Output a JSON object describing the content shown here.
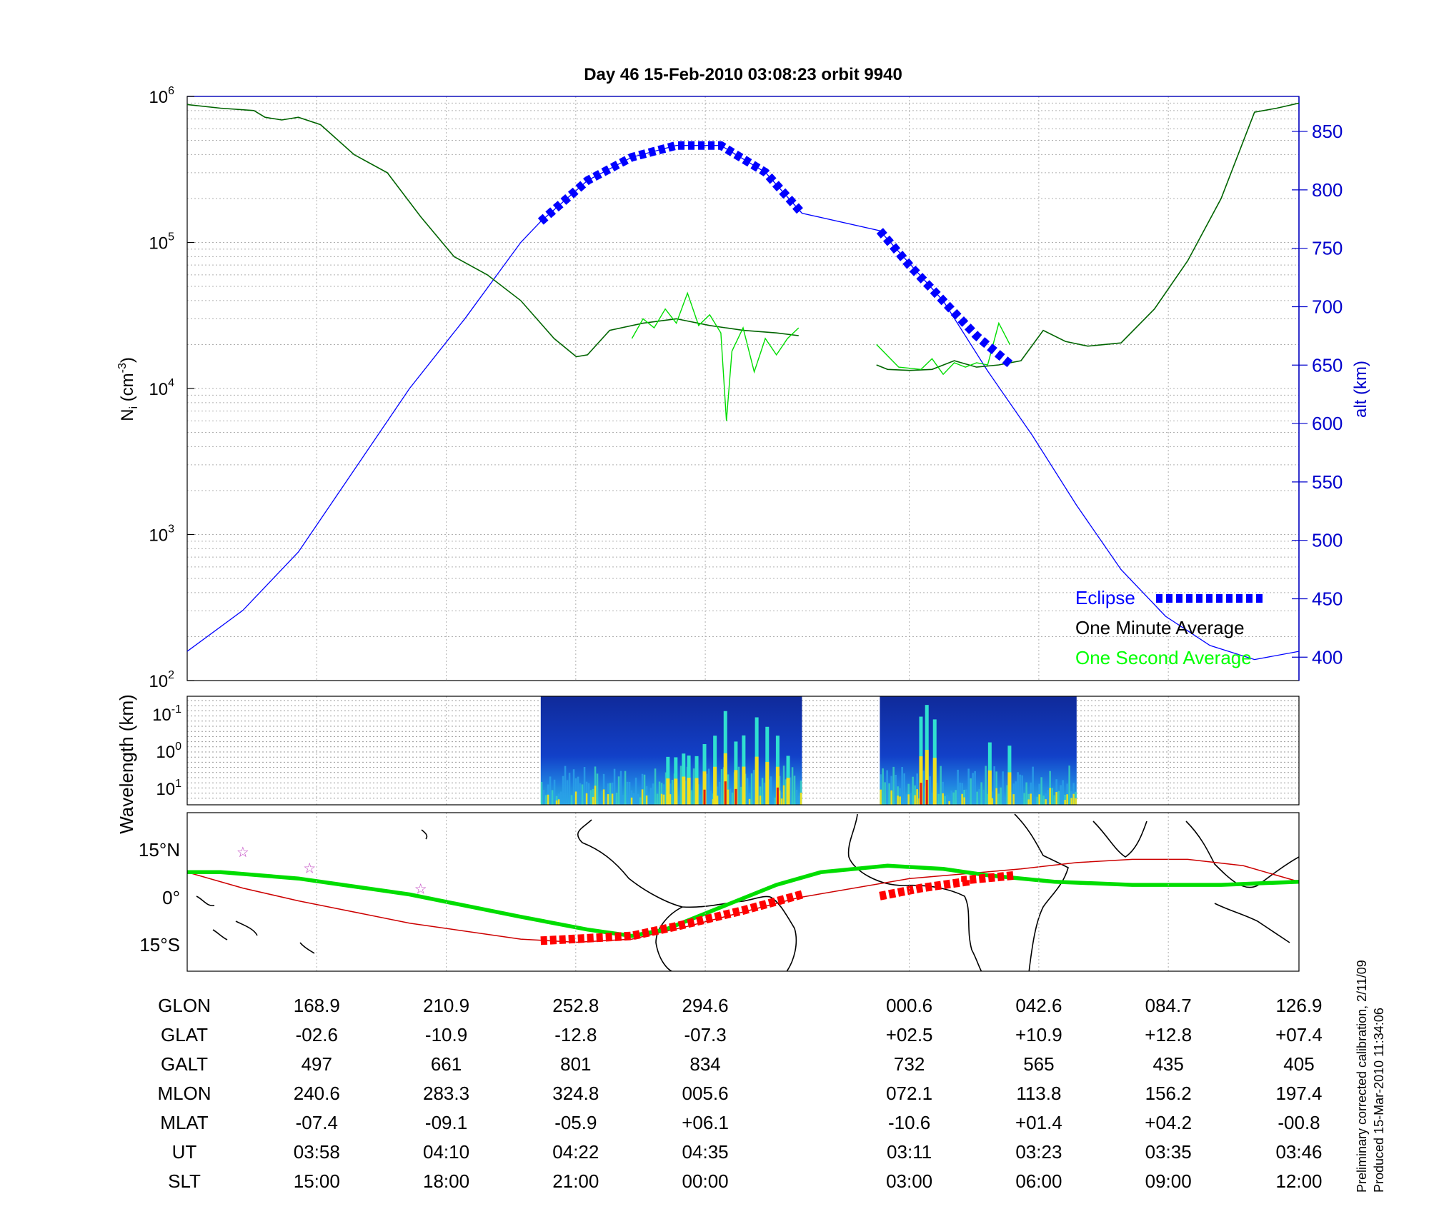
{
  "title": "Day 46  15-Feb-2010 03:08:23   orbit 9940",
  "chart_data": [
    {
      "panel": "ion-density",
      "type": "line",
      "ylabel_left": "N",
      "ylabel_left_sub": "i",
      "ylabel_left_unit_base": "(cm",
      "ylabel_left_unit_exp": "-3",
      "ylabel_left_unit_close": ")",
      "ylabel_right": "alt (km)",
      "y_left_scale": "log",
      "y_left_range": [
        100,
        1000000
      ],
      "y_left_ticks": [
        {
          "base": "10",
          "exp": "2",
          "value": 100
        },
        {
          "base": "10",
          "exp": "3",
          "value": 1000
        },
        {
          "base": "10",
          "exp": "4",
          "value": 10000
        },
        {
          "base": "10",
          "exp": "5",
          "value": 100000
        },
        {
          "base": "10",
          "exp": "6",
          "value": 1000000
        }
      ],
      "y_right_range": [
        380,
        880
      ],
      "y_right_ticks": [
        "400",
        "450",
        "500",
        "550",
        "600",
        "650",
        "700",
        "750",
        "800",
        "850"
      ],
      "x_range": [
        0,
        1
      ],
      "x_tick_positions": [
        0.1165,
        0.233,
        0.3495,
        0.466,
        0.6495,
        0.766,
        0.8825,
        1.0
      ],
      "grid": true,
      "legend_placement": "bottom-right",
      "legend": [
        {
          "label": "Eclipse",
          "color": "#0000ff"
        },
        {
          "label": "One Minute Average",
          "color": "#000000"
        },
        {
          "label": "One Second Average",
          "color": "#00ff00"
        }
      ],
      "series": [
        {
          "name": "Eclipse",
          "color": "#0000ff",
          "axis": "right",
          "segments": [
            {
              "x": [
                0.318,
                0.36,
                0.4,
                0.44,
                0.48,
                0.52,
                0.553
              ],
              "y": [
                773,
                808,
                828,
                838,
                838,
                815,
                780
              ]
            },
            {
              "x": [
                0.623,
                0.65,
                0.68,
                0.71,
                0.74
              ],
              "y": [
                765,
                735,
                705,
                675,
                651
              ]
            }
          ]
        },
        {
          "name": "altitude",
          "color": "#0000ff",
          "axis": "right",
          "x": [
            0,
            0.05,
            0.1,
            0.15,
            0.2,
            0.25,
            0.3,
            0.318,
            0.36,
            0.4,
            0.44,
            0.48,
            0.52,
            0.553,
            0.623,
            0.68,
            0.72,
            0.76,
            0.8,
            0.84,
            0.88,
            0.92,
            0.96,
            1.0
          ],
          "y": [
            405,
            440,
            490,
            560,
            630,
            690,
            755,
            773,
            808,
            828,
            838,
            838,
            815,
            780,
            765,
            705,
            645,
            590,
            530,
            475,
            435,
            410,
            398,
            405
          ]
        },
        {
          "name": "One Minute Average",
          "color": "#006400",
          "axis": "left",
          "segments": [
            {
              "x": [
                0,
                0.03,
                0.06,
                0.07,
                0.085,
                0.1,
                0.12,
                0.15,
                0.18,
                0.21,
                0.24,
                0.27,
                0.3,
                0.33,
                0.35,
                0.36,
                0.38,
                0.41,
                0.44,
                0.47,
                0.5,
                0.53,
                0.55
              ],
              "y": [
                880000,
                830000,
                800000,
                720000,
                690000,
                720000,
                640000,
                400000,
                300000,
                150000,
                80000,
                60000,
                40000,
                22000,
                16500,
                17000,
                25000,
                28000,
                30000,
                27000,
                25000,
                24000,
                23000
              ]
            },
            {
              "x": [
                0.62,
                0.63,
                0.65,
                0.67,
                0.69,
                0.71,
                0.73,
                0.75,
                0.77,
                0.79,
                0.81,
                0.84,
                0.87,
                0.9,
                0.93,
                0.96,
                0.98,
                1.0
              ],
              "y": [
                14500,
                13500,
                13300,
                13500,
                15500,
                14000,
                14500,
                15500,
                25000,
                21000,
                19500,
                20500,
                35000,
                75000,
                200000,
                780000,
                830000,
                900000
              ]
            }
          ]
        },
        {
          "name": "One Second Average",
          "color": "#00dd00",
          "axis": "left",
          "segments": [
            {
              "x": [
                0.4,
                0.41,
                0.42,
                0.43,
                0.44,
                0.45,
                0.46,
                0.47,
                0.48,
                0.485,
                0.49,
                0.5,
                0.51,
                0.52,
                0.53,
                0.54,
                0.55
              ],
              "y": [
                22000,
                30000,
                26000,
                35000,
                28000,
                45000,
                27000,
                32000,
                24000,
                6000,
                18000,
                26000,
                13000,
                22000,
                17000,
                22000,
                26000
              ]
            },
            {
              "x": [
                0.62,
                0.64,
                0.66,
                0.67,
                0.68,
                0.69,
                0.7,
                0.71,
                0.72,
                0.73,
                0.74
              ],
              "y": [
                20000,
                14000,
                13500,
                16000,
                12500,
                15000,
                14000,
                15000,
                14500,
                28000,
                20000
              ]
            }
          ]
        }
      ]
    },
    {
      "panel": "wavelength-spectrogram",
      "type": "heatmap",
      "ylabel": "Wavelength (km)",
      "y_scale": "log",
      "y_ticks": [
        {
          "base": "10",
          "exp": "-1"
        },
        {
          "base": "10",
          "exp": "0"
        },
        {
          "base": "10",
          "exp": "1"
        }
      ],
      "data_spans_x": [
        [
          0.318,
          0.553
        ],
        [
          0.623,
          0.8
        ]
      ]
    },
    {
      "panel": "orbit-map",
      "type": "line",
      "y_ticks": [
        "15°N",
        "0°",
        "15°S"
      ],
      "series": [
        {
          "name": "orbit track",
          "color": "#00dd00",
          "x": [
            0,
            0.03,
            0.1,
            0.2,
            0.3,
            0.36,
            0.4,
            0.43,
            0.48,
            0.53,
            0.57,
            0.63,
            0.68,
            0.72,
            0.78,
            0.85,
            0.93,
            1.0
          ],
          "y": [
            8,
            8,
            6,
            1,
            -6,
            -10,
            -12,
            -10,
            -3,
            4,
            8,
            10,
            9,
            7,
            5,
            4,
            4,
            5
          ]
        },
        {
          "name": "magnetic equator",
          "color": "#cc0000",
          "x": [
            0,
            0.05,
            0.1,
            0.2,
            0.3,
            0.35,
            0.4,
            0.45,
            0.55,
            0.65,
            0.75,
            0.8,
            0.85,
            0.9,
            0.95,
            1.0
          ],
          "y": [
            8,
            3,
            -1,
            -8,
            -13,
            -14,
            -13,
            -9,
            0,
            6,
            9,
            11,
            12,
            12,
            10,
            5
          ]
        },
        {
          "name": "Eclipse",
          "color": "#ff0000",
          "segments": [
            {
              "x": [
                0.318,
                0.4,
                0.44,
                0.5,
                0.553
              ],
              "y": [
                -13.5,
                -12,
                -9,
                -4,
                1
              ]
            },
            {
              "x": [
                0.623,
                0.66,
                0.7,
                0.7,
                0.745
              ],
              "y": [
                0.5,
                3,
                5,
                5.5,
                7
              ]
            }
          ]
        }
      ],
      "stars_x": [
        0.05,
        0.11,
        0.21
      ],
      "stars_y": [
        14.5,
        9.5,
        3
      ]
    }
  ],
  "table": {
    "rows": [
      {
        "label": "GLON",
        "values": [
          "168.9",
          "210.9",
          "252.8",
          "294.6",
          "000.6",
          "042.6",
          "084.7",
          "126.9"
        ]
      },
      {
        "label": "GLAT",
        "values": [
          "-02.6",
          "-10.9",
          "-12.8",
          "-07.3",
          "+02.5",
          "+10.9",
          "+12.8",
          "+07.4"
        ]
      },
      {
        "label": "GALT",
        "values": [
          "497",
          "661",
          "801",
          "834",
          "732",
          "565",
          "435",
          "405"
        ]
      },
      {
        "label": "MLON",
        "values": [
          "240.6",
          "283.3",
          "324.8",
          "005.6",
          "072.1",
          "113.8",
          "156.2",
          "197.4"
        ]
      },
      {
        "label": "MLAT",
        "values": [
          "-07.4",
          "-09.1",
          "-05.9",
          "+06.1",
          "-10.6",
          "+01.4",
          "+04.2",
          "-00.8"
        ]
      },
      {
        "label": "UT",
        "values": [
          "03:58",
          "04:10",
          "04:22",
          "04:35",
          "03:11",
          "03:23",
          "03:35",
          "03:46"
        ]
      },
      {
        "label": "SLT",
        "values": [
          "15:00",
          "18:00",
          "21:00",
          "00:00",
          "03:00",
          "06:00",
          "09:00",
          "12:00"
        ]
      }
    ]
  },
  "footnote": {
    "line1": "Preliminary corrected calibration, 2/11/09",
    "line2": "Produced 15-Mar-2010 11:34:06"
  }
}
